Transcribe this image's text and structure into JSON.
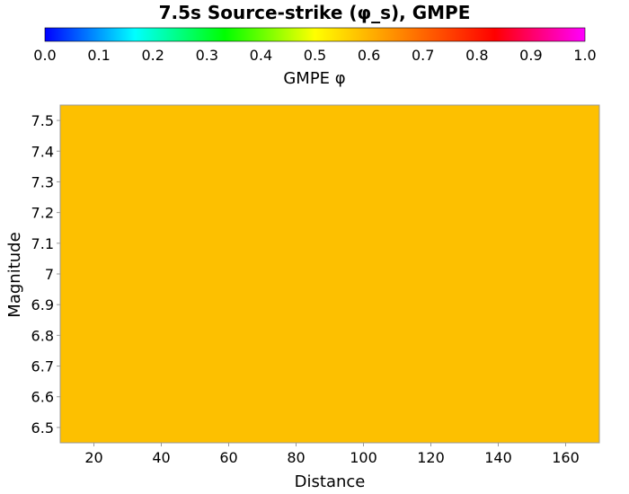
{
  "chart_data": {
    "type": "heatmap",
    "title": "7.5s Source-strike (φ_s), GMPE",
    "xlabel": "Distance",
    "ylabel": "Magnitude",
    "xlim": [
      10,
      170
    ],
    "ylim": [
      6.45,
      7.55
    ],
    "x_ticks": [
      "20",
      "40",
      "60",
      "80",
      "100",
      "120",
      "140",
      "160"
    ],
    "y_ticks": [
      "6.5",
      "6.6",
      "6.7",
      "6.8",
      "6.9",
      "7",
      "7.1",
      "7.2",
      "7.3",
      "7.4",
      "7.5"
    ],
    "colorbar": {
      "label": "GMPE φ",
      "range": [
        0.0,
        1.0
      ],
      "ticks": [
        "0.0",
        "0.1",
        "0.2",
        "0.3",
        "0.4",
        "0.5",
        "0.6",
        "0.7",
        "0.8",
        "0.9",
        "1.0"
      ],
      "colors": [
        "#0000ff",
        "#00ffff",
        "#00ff00",
        "#ffff00",
        "#ff8000",
        "#ff0000",
        "#ff00ff"
      ]
    },
    "cells": [
      {
        "x_range": [
          10,
          170
        ],
        "y_range": [
          6.45,
          7.55
        ],
        "value": 0.63,
        "color": "#fdc000"
      }
    ],
    "grid": false
  }
}
